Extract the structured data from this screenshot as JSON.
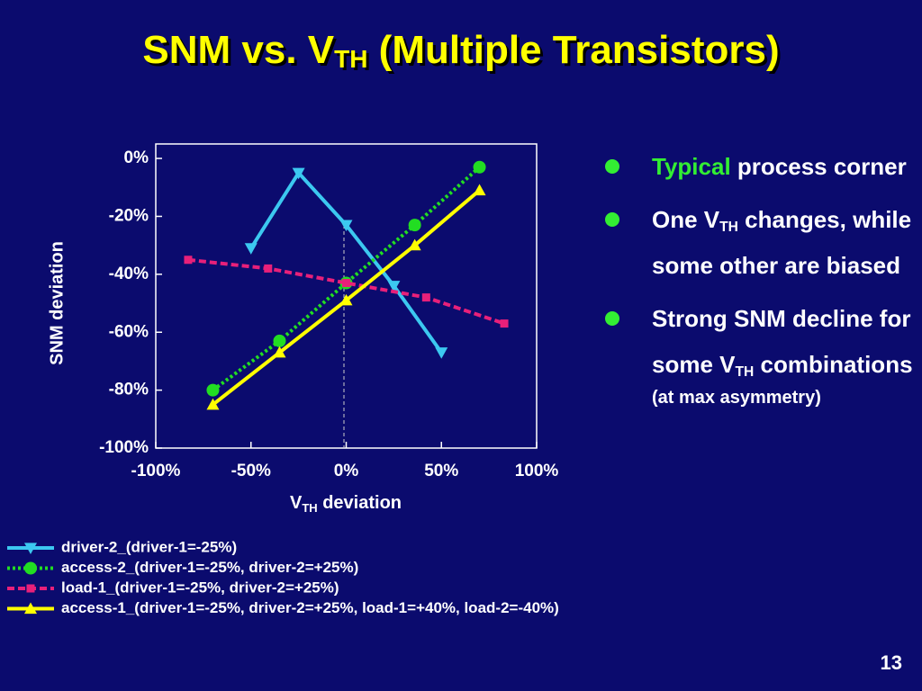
{
  "title_parts": [
    "SNM vs. V",
    "TH",
    " (Multiple Transistors)"
  ],
  "chart_data": {
    "type": "line",
    "x_label_parts": [
      "V",
      "TH",
      " deviation"
    ],
    "y_label": "SNM deviation",
    "xlim": [
      -100,
      100
    ],
    "ylim": [
      -100,
      5
    ],
    "xticks": [
      {
        "value": -100,
        "label": "-100%"
      },
      {
        "value": -50,
        "label": "-50%"
      },
      {
        "value": 0,
        "label": "0%"
      },
      {
        "value": 50,
        "label": "50%"
      },
      {
        "value": 100,
        "label": "100%"
      }
    ],
    "yticks": [
      {
        "value": 0,
        "label": "0%"
      },
      {
        "value": -20,
        "label": "-20%"
      },
      {
        "value": -40,
        "label": "-40%"
      },
      {
        "value": -60,
        "label": "-60%"
      },
      {
        "value": -80,
        "label": "-80%"
      },
      {
        "value": -100,
        "label": "-100%"
      }
    ],
    "series": [
      {
        "name": "driver-2_(driver-1=-25%)",
        "color": "#3cc8f0",
        "marker": "triangle-down",
        "linestyle": "solid",
        "x": [
          -50,
          -25,
          0,
          25,
          50
        ],
        "values": [
          -31,
          -5,
          -23,
          -44,
          -67
        ]
      },
      {
        "name": "access-2_(driver-1=-25%, driver-2=+25%)",
        "color": "#22dd22",
        "marker": "circle",
        "linestyle": "dotted",
        "x": [
          -70,
          -35,
          0,
          36,
          70
        ],
        "values": [
          -80,
          -63,
          -43,
          -23,
          -3
        ]
      },
      {
        "name": "load-1_(driver-1=-25%, driver-2=+25%)",
        "color": "#e8207a",
        "marker": "square",
        "linestyle": "dashed",
        "x": [
          -83,
          -41,
          0,
          42,
          83
        ],
        "values": [
          -35,
          -38,
          -43,
          -48,
          -57
        ]
      },
      {
        "name": "access-1_(driver-1=-25%, driver-2=+25%, load-1=+40%, load-2=-40%)",
        "color": "#ffff00",
        "marker": "triangle-up",
        "linestyle": "solid",
        "x": [
          -70,
          -35,
          0,
          36,
          70
        ],
        "values": [
          -85,
          -67,
          -49,
          -30,
          -11
        ]
      }
    ]
  },
  "bullets": [
    {
      "parts": [
        "Typical",
        " process corner"
      ]
    },
    {
      "parts": [
        "One V",
        "TH",
        " changes, while some other are biased"
      ]
    },
    {
      "parts": [
        "Strong SNM decline for some V",
        "TH",
        " combinations"
      ],
      "note": "(at max asymmetry)"
    }
  ],
  "page_number": "13"
}
